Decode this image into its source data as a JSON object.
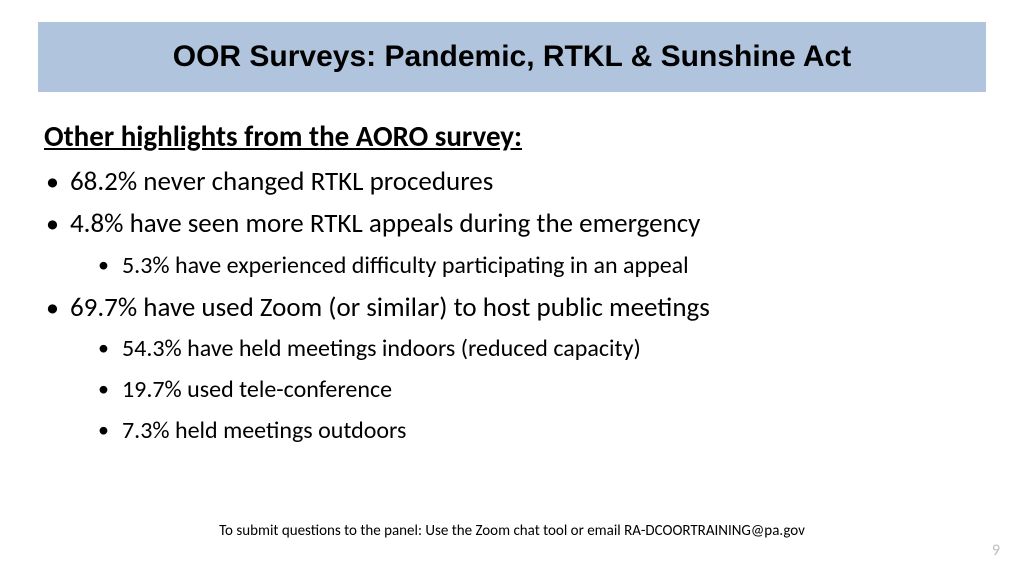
{
  "colors": {
    "title_bar_bg": "#b0c4de",
    "title_text": "#000000",
    "body_text": "#000000",
    "page_num": "#bfbfbf",
    "slide_bg": "#ffffff"
  },
  "typography": {
    "title_font": "Arial Black",
    "title_size_pt": 30,
    "subhead_size_pt": 29,
    "bullet_lvl1_size_pt": 27,
    "bullet_lvl2_size_pt": 24,
    "footer_size_pt": 15,
    "pagenum_size_pt": 16
  },
  "title": "OOR Surveys: Pandemic, RTKL & Sunshine Act",
  "subhead": "Other highlights from the AORO survey:",
  "bullets": [
    {
      "text": "68.2% never changed RTKL procedures",
      "children": []
    },
    {
      "text": "4.8% have seen more RTKL appeals during the emergency",
      "children": [
        "5.3% have experienced difficulty participating in an appeal"
      ]
    },
    {
      "text": "69.7% have used Zoom (or similar) to host public meetings",
      "children": [
        "54.3% have held meetings indoors (reduced capacity)",
        "19.7% used tele-conference",
        "7.3% held meetings outdoors"
      ]
    }
  ],
  "footer": "To submit questions to the panel: Use the Zoom chat tool or email RA-DCOORTRAINING@pa.gov",
  "page_number": "9"
}
